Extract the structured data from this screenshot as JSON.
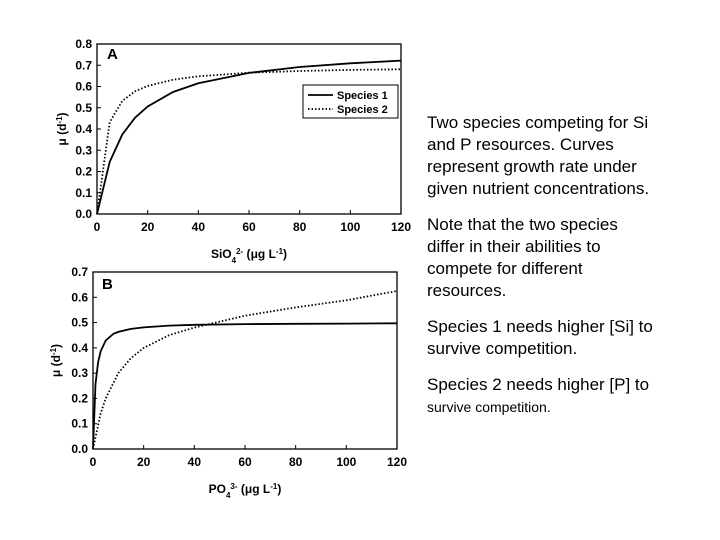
{
  "chart_data": [
    {
      "type": "line",
      "panel_label": "A",
      "xlabel": "SiO4 2- (μg L-1)",
      "ylabel": "μ (d-1)",
      "xlim": [
        0,
        120
      ],
      "ylim": [
        0,
        0.8
      ],
      "xticks": [
        "0",
        "20",
        "40",
        "60",
        "80",
        "100",
        "120"
      ],
      "yticks": [
        "0.0",
        "0.1",
        "0.2",
        "0.3",
        "0.4",
        "0.5",
        "0.6",
        "0.7",
        "0.8"
      ],
      "legend": "top-right",
      "grid": false,
      "series": [
        {
          "name": "Species 1",
          "style": "solid",
          "x": [
            0,
            5,
            10,
            15,
            20,
            30,
            40,
            60,
            80,
            100,
            120
          ],
          "y": [
            0,
            0.245,
            0.374,
            0.453,
            0.506,
            0.574,
            0.615,
            0.664,
            0.692,
            0.709,
            0.722
          ]
        },
        {
          "name": "Species 2",
          "style": "dotted",
          "x": [
            0,
            5,
            10,
            15,
            20,
            30,
            40,
            60,
            80,
            100,
            120
          ],
          "y": [
            0,
            0.432,
            0.532,
            0.577,
            0.603,
            0.632,
            0.648,
            0.665,
            0.673,
            0.678,
            0.681
          ]
        }
      ]
    },
    {
      "type": "line",
      "panel_label": "B",
      "xlabel": "PO4 3- (μg L-1)",
      "ylabel": "μ (d-1)",
      "xlim": [
        0,
        120
      ],
      "ylim": [
        0,
        0.7
      ],
      "xticks": [
        "0",
        "20",
        "40",
        "60",
        "80",
        "100",
        "120"
      ],
      "yticks": [
        "0.0",
        "0.1",
        "0.2",
        "0.3",
        "0.4",
        "0.5",
        "0.6",
        "0.7"
      ],
      "grid": false,
      "series": [
        {
          "name": "Species 1",
          "style": "solid",
          "x": [
            0,
            1,
            2,
            3,
            5,
            8,
            10,
            15,
            20,
            30,
            40,
            60,
            80,
            100,
            120
          ],
          "y": [
            0,
            0.257,
            0.343,
            0.386,
            0.429,
            0.455,
            0.463,
            0.475,
            0.481,
            0.488,
            0.491,
            0.494,
            0.495,
            0.496,
            0.497
          ]
        },
        {
          "name": "Species 2",
          "style": "dotted",
          "x": [
            0,
            3,
            5,
            10,
            15,
            20,
            30,
            40,
            60,
            80,
            100,
            120
          ],
          "y": [
            0,
            0.14,
            0.2,
            0.3,
            0.36,
            0.4,
            0.45,
            0.48,
            0.527,
            0.56,
            0.588,
            0.625
          ]
        }
      ]
    }
  ],
  "notes": [
    {
      "lines": [
        "Two species competing for Si",
        "and P resources.  Curves",
        "represent growth rate under",
        "given nutrient concentrations."
      ]
    },
    {
      "lines": [
        "Note that the two species",
        "differ in their abilities to",
        "compete for different",
        "resources."
      ]
    },
    {
      "lines": [
        "Species 1 needs higher [Si] to",
        "survive competition."
      ]
    },
    {
      "lines": [
        "Species 2 needs higher [P] to",
        "survive competition."
      ]
    }
  ]
}
